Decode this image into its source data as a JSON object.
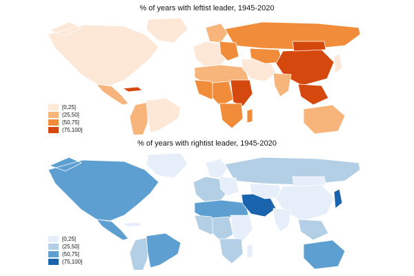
{
  "maps": {
    "leftist": {
      "title": "% of years with leftist leader, 1945-2020",
      "legend": [
        {
          "label": "[0,25]",
          "color": "#fde7d6"
        },
        {
          "label": "(25,50]",
          "color": "#f7b57b"
        },
        {
          "label": "(50,75]",
          "color": "#f08c3a"
        },
        {
          "label": "(75,100]",
          "color": "#d5490e"
        }
      ],
      "regions": {
        "north-america": 0,
        "greenland": 0,
        "central-america": 1,
        "cuba": 3,
        "south-america": 1,
        "brazil": 0,
        "europe-west": 0,
        "scandinavia": 1,
        "russia": 2,
        "eastern-europe": 2,
        "north-africa": 1,
        "west-africa": 2,
        "central-africa": 2,
        "east-africa": 3,
        "southern-africa": 2,
        "middle-east": 0,
        "central-asia": 2,
        "china": 3,
        "india": 1,
        "mongolia": 3,
        "southeast-asia": 3,
        "japan": 0,
        "australia": 1,
        "madagascar": 2
      }
    },
    "rightist": {
      "title": "% of years with rightist leader, 1945-2020",
      "legend": [
        {
          "label": "[0,25]",
          "color": "#e6eef9"
        },
        {
          "label": "(25,50]",
          "color": "#b3cfe6"
        },
        {
          "label": "(50,75]",
          "color": "#5e9fd1"
        },
        {
          "label": "(75,100]",
          "color": "#1a63ad"
        }
      ],
      "regions": {
        "north-america": 2,
        "greenland": 0,
        "central-america": 2,
        "cuba": 0,
        "south-america": 1,
        "brazil": 2,
        "europe-west": 1,
        "scandinavia": 0,
        "russia": 1,
        "eastern-europe": 0,
        "north-africa": 2,
        "west-africa": 1,
        "central-africa": 1,
        "east-africa": 0,
        "southern-africa": 1,
        "middle-east": 3,
        "central-asia": 0,
        "china": 0,
        "india": 0,
        "mongolia": 0,
        "southeast-asia": 1,
        "japan": 3,
        "australia": 2,
        "madagascar": 0
      }
    }
  }
}
